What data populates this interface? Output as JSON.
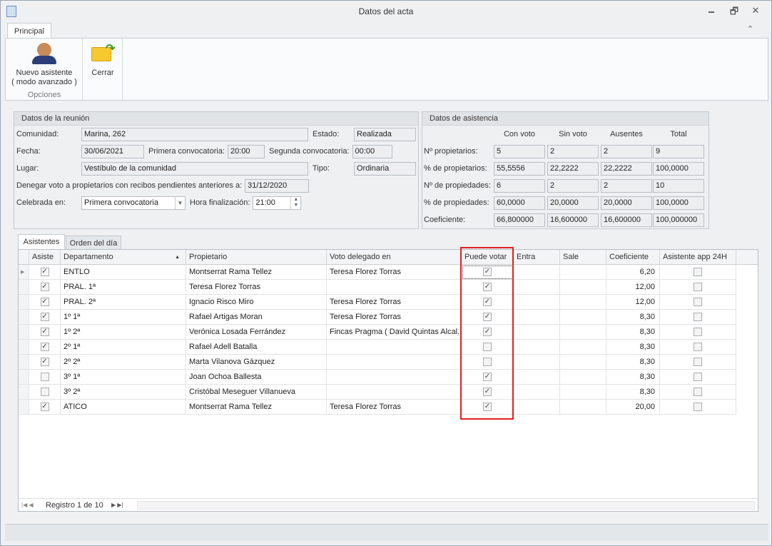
{
  "window": {
    "title": "Datos del acta",
    "minimize": "🗕",
    "restore": "🗗",
    "close": "✕"
  },
  "ribbon": {
    "tab": "Principal",
    "collapse": "⌃",
    "buttons": [
      {
        "label1": "Nuevo asistente",
        "label2": "( modo avanzado )"
      },
      {
        "label1": "Cerrar"
      }
    ],
    "group": "Opciones"
  },
  "reunion": {
    "title": "Datos de la reunión",
    "comunidad_label": "Comunidad:",
    "comunidad": "Marina, 262",
    "estado_label": "Estado:",
    "estado": "Realizada",
    "fecha_label": "Fecha:",
    "fecha": "30/06/2021",
    "primera_label": "Primera convocatoria:",
    "primera": "20:00",
    "segunda_label": "Segunda convocatoria:",
    "segunda": "00:00",
    "lugar_label": "Lugar:",
    "lugar": "Vestíbulo de la comunidad",
    "tipo_label": "Tipo:",
    "tipo": "Ordinaria",
    "denegar_label": "Denegar voto a propietarios con recibos pendientes anteriores a:",
    "denegar": "31/12/2020",
    "celebrada_label": "Celebrada en:",
    "celebrada": "Primera convocatoria",
    "hora_label": "Hora finalización:",
    "hora": "21:00"
  },
  "asistencia": {
    "title": "Datos de asistencia",
    "columns": [
      "Con voto",
      "Sin voto",
      "Ausentes",
      "Total"
    ],
    "rows": [
      {
        "label": "Nº propietarios:",
        "values": [
          "5",
          "2",
          "2",
          "9"
        ]
      },
      {
        "label": "% de propietarios:",
        "values": [
          "55,5556",
          "22,2222",
          "22,2222",
          "100,0000"
        ]
      },
      {
        "label": "Nº de propiedades:",
        "values": [
          "6",
          "2",
          "2",
          "10"
        ]
      },
      {
        "label": "% de propiedades:",
        "values": [
          "60,0000",
          "20,0000",
          "20,0000",
          "100,0000"
        ]
      },
      {
        "label": "Coeficiente:",
        "values": [
          "66,800000",
          "16,600000",
          "16,600000",
          "100,000000"
        ]
      }
    ]
  },
  "tabs": [
    "Asistentes",
    "Orden del día"
  ],
  "grid": {
    "columns": [
      "Asiste",
      "Departamento",
      "Propietario",
      "Voto delegado en",
      "Puede votar",
      "Entra",
      "Sale",
      "Coeficiente",
      "Asistente app 24H"
    ],
    "rows": [
      {
        "asiste": true,
        "dep": "ENTLO",
        "prop": "Montserrat Rama Tellez",
        "voto": "Teresa Florez Torras",
        "puede": true,
        "entra": "",
        "sale": "",
        "coef": "6,20",
        "app": false
      },
      {
        "asiste": true,
        "dep": "PRAL. 1ª",
        "prop": "Teresa Florez Torras",
        "voto": "",
        "puede": true,
        "entra": "",
        "sale": "",
        "coef": "12,00",
        "app": false
      },
      {
        "asiste": true,
        "dep": "PRAL. 2ª",
        "prop": "Ignacio Risco Miro",
        "voto": "Teresa Florez Torras",
        "puede": true,
        "entra": "",
        "sale": "",
        "coef": "12,00",
        "app": false
      },
      {
        "asiste": true,
        "dep": "1º 1ª",
        "prop": "Rafael Artigas Moran",
        "voto": "Teresa Florez Torras",
        "puede": true,
        "entra": "",
        "sale": "",
        "coef": "8,30",
        "app": false
      },
      {
        "asiste": true,
        "dep": "1º 2ª",
        "prop": "Verónica Losada Ferrández",
        "voto": "Fincas Pragma ( David Quintas Alcal...",
        "puede": true,
        "entra": "",
        "sale": "",
        "coef": "8,30",
        "app": false
      },
      {
        "asiste": true,
        "dep": "2º 1ª",
        "prop": "Rafael Adell Batalla",
        "voto": "",
        "puede": false,
        "entra": "",
        "sale": "",
        "coef": "8,30",
        "app": false
      },
      {
        "asiste": true,
        "dep": "2º 2ª",
        "prop": "Marta Vilanova Gázquez",
        "voto": "",
        "puede": false,
        "entra": "",
        "sale": "",
        "coef": "8,30",
        "app": false
      },
      {
        "asiste": false,
        "dep": "3º 1ª",
        "prop": "Joan Ochoa Ballesta",
        "voto": "",
        "puede": true,
        "entra": "",
        "sale": "",
        "coef": "8,30",
        "app": false
      },
      {
        "asiste": false,
        "dep": "3º 2ª",
        "prop": "Cristóbal Meseguer Villanueva",
        "voto": "",
        "puede": true,
        "entra": "",
        "sale": "",
        "coef": "8,30",
        "app": false
      },
      {
        "asiste": true,
        "dep": "ATICO",
        "prop": "Montserrat Rama Tellez",
        "voto": "Teresa Florez Torras",
        "puede": true,
        "entra": "",
        "sale": "",
        "coef": "20,00",
        "app": false
      }
    ]
  },
  "navigator": {
    "record": "Registro 1 de 10"
  },
  "highlight_color": "#e02020"
}
